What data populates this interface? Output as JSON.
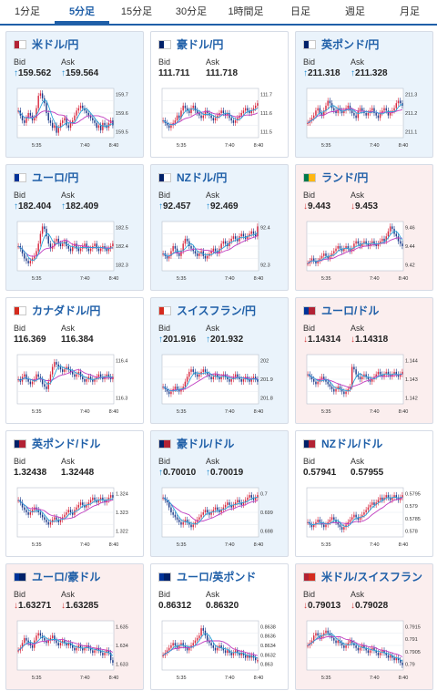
{
  "tabs": [
    "1分足",
    "5分足",
    "15分足",
    "30分足",
    "1時間足",
    "日足",
    "週足",
    "月足"
  ],
  "active_tab": 1,
  "labels": {
    "bid": "Bid",
    "ask": "Ask"
  },
  "x_ticks": [
    "5:35",
    "7:40",
    "8:40"
  ],
  "cards": [
    {
      "pair": "米ドル/円",
      "flag": "usd-jpy-flag",
      "trend": "up",
      "bid": "159.562",
      "ask": "159.564",
      "y_ticks": [
        "159.7",
        "159.6",
        "159.5"
      ],
      "series": [
        0.55,
        0.45,
        0.35,
        0.3,
        0.4,
        0.5,
        0.45,
        0.35,
        0.4,
        0.6,
        0.85,
        0.9,
        0.8,
        0.7,
        0.5,
        0.35,
        0.3,
        0.2,
        0.25,
        0.1,
        0.2,
        0.3,
        0.35,
        0.4,
        0.25,
        0.2,
        0.3,
        0.35,
        0.45,
        0.55,
        0.6,
        0.65,
        0.6,
        0.55,
        0.5,
        0.45,
        0.4,
        0.35,
        0.3,
        0.2,
        0.25,
        0.15,
        0.3,
        0.25,
        0.2,
        0.3,
        0.35,
        0.25
      ]
    },
    {
      "pair": "豪ドル/円",
      "flag": "aud-jpy-flag",
      "trend": "neutral",
      "bid": "111.711",
      "ask": "111.718",
      "y_ticks": [
        "111.7",
        "111.6",
        "111.5"
      ],
      "series": [
        0.35,
        0.3,
        0.25,
        0.2,
        0.25,
        0.3,
        0.35,
        0.45,
        0.4,
        0.55,
        0.65,
        0.6,
        0.55,
        0.5,
        0.6,
        0.65,
        0.55,
        0.5,
        0.45,
        0.4,
        0.45,
        0.55,
        0.5,
        0.45,
        0.4,
        0.35,
        0.4,
        0.45,
        0.5,
        0.55,
        0.5,
        0.45,
        0.5,
        0.4,
        0.35,
        0.3,
        0.35,
        0.4,
        0.45,
        0.5,
        0.55,
        0.6,
        0.55,
        0.5,
        0.55,
        0.6,
        0.65,
        0.7
      ]
    },
    {
      "pair": "英ポンド/円",
      "flag": "gbp-jpy-flag",
      "trend": "up",
      "bid": "211.318",
      "ask": "211.328",
      "y_ticks": [
        "211.3",
        "211.2",
        "211.1"
      ],
      "series": [
        0.3,
        0.35,
        0.4,
        0.45,
        0.55,
        0.6,
        0.5,
        0.45,
        0.55,
        0.65,
        0.75,
        0.7,
        0.6,
        0.55,
        0.5,
        0.6,
        0.55,
        0.5,
        0.55,
        0.6,
        0.65,
        0.55,
        0.5,
        0.45,
        0.4,
        0.55,
        0.6,
        0.55,
        0.5,
        0.45,
        0.5,
        0.55,
        0.6,
        0.5,
        0.45,
        0.4,
        0.5,
        0.55,
        0.6,
        0.55,
        0.45,
        0.5,
        0.55,
        0.6,
        0.7,
        0.75,
        0.7,
        0.65
      ]
    },
    {
      "pair": "ユーロ/円",
      "flag": "eur-jpy-flag",
      "trend": "up",
      "bid": "182.404",
      "ask": "182.409",
      "y_ticks": [
        "182.5",
        "182.4",
        "182.3"
      ],
      "series": [
        0.5,
        0.45,
        0.35,
        0.25,
        0.2,
        0.15,
        0.2,
        0.25,
        0.3,
        0.4,
        0.55,
        0.75,
        0.9,
        0.85,
        0.7,
        0.55,
        0.45,
        0.5,
        0.6,
        0.65,
        0.55,
        0.5,
        0.55,
        0.6,
        0.5,
        0.45,
        0.4,
        0.5,
        0.55,
        0.45,
        0.4,
        0.45,
        0.5,
        0.55,
        0.45,
        0.4,
        0.45,
        0.5,
        0.55,
        0.45,
        0.4,
        0.45,
        0.5,
        0.45,
        0.4,
        0.45,
        0.5,
        0.55
      ]
    },
    {
      "pair": "NZドル/円",
      "flag": "nzd-jpy-flag",
      "trend": "up",
      "bid": "92.457",
      "ask": "92.469",
      "y_ticks": [
        "92.4",
        "92.3"
      ],
      "series": [
        0.35,
        0.3,
        0.25,
        0.3,
        0.4,
        0.5,
        0.45,
        0.35,
        0.3,
        0.4,
        0.55,
        0.65,
        0.6,
        0.5,
        0.45,
        0.4,
        0.35,
        0.3,
        0.35,
        0.4,
        0.3,
        0.25,
        0.3,
        0.35,
        0.4,
        0.45,
        0.4,
        0.35,
        0.45,
        0.55,
        0.6,
        0.55,
        0.5,
        0.6,
        0.65,
        0.7,
        0.65,
        0.6,
        0.7,
        0.75,
        0.7,
        0.65,
        0.7,
        0.75,
        0.8,
        0.75,
        0.7,
        0.9
      ]
    },
    {
      "pair": "ランド/円",
      "flag": "zar-jpy-flag",
      "trend": "down",
      "bid": "9.443",
      "ask": "9.453",
      "y_ticks": [
        "9.46",
        "9.44",
        "9.42"
      ],
      "series": [
        0.15,
        0.2,
        0.25,
        0.2,
        0.15,
        0.2,
        0.25,
        0.3,
        0.35,
        0.3,
        0.25,
        0.3,
        0.35,
        0.4,
        0.45,
        0.5,
        0.45,
        0.4,
        0.45,
        0.5,
        0.45,
        0.4,
        0.45,
        0.55,
        0.6,
        0.55,
        0.5,
        0.55,
        0.6,
        0.55,
        0.5,
        0.55,
        0.6,
        0.55,
        0.5,
        0.55,
        0.6,
        0.65,
        0.6,
        0.7,
        0.8,
        0.9,
        0.85,
        0.75,
        0.7,
        0.6,
        0.55,
        0.5
      ]
    },
    {
      "pair": "カナダドル/円",
      "flag": "cad-jpy-flag",
      "trend": "neutral",
      "bid": "116.369",
      "ask": "116.384",
      "y_ticks": [
        "116.4",
        "116.3"
      ],
      "series": [
        0.5,
        0.45,
        0.55,
        0.6,
        0.5,
        0.45,
        0.4,
        0.45,
        0.5,
        0.6,
        0.55,
        0.5,
        0.4,
        0.35,
        0.3,
        0.45,
        0.6,
        0.75,
        0.85,
        0.8,
        0.75,
        0.7,
        0.65,
        0.7,
        0.75,
        0.7,
        0.65,
        0.6,
        0.55,
        0.6,
        0.65,
        0.55,
        0.5,
        0.45,
        0.5,
        0.55,
        0.5,
        0.45,
        0.5,
        0.55,
        0.6,
        0.55,
        0.5,
        0.55,
        0.6,
        0.55,
        0.5,
        0.55
      ]
    },
    {
      "pair": "スイスフラン/円",
      "flag": "chf-jpy-flag",
      "trend": "up",
      "bid": "201.916",
      "ask": "201.932",
      "y_ticks": [
        "202",
        "201.9",
        "201.8"
      ],
      "series": [
        0.35,
        0.3,
        0.25,
        0.2,
        0.25,
        0.3,
        0.35,
        0.3,
        0.25,
        0.3,
        0.35,
        0.45,
        0.55,
        0.65,
        0.7,
        0.65,
        0.6,
        0.55,
        0.6,
        0.65,
        0.7,
        0.65,
        0.6,
        0.55,
        0.5,
        0.55,
        0.6,
        0.55,
        0.5,
        0.55,
        0.6,
        0.55,
        0.5,
        0.45,
        0.5,
        0.55,
        0.6,
        0.55,
        0.5,
        0.45,
        0.5,
        0.55,
        0.5,
        0.45,
        0.5,
        0.55,
        0.5,
        0.45
      ]
    },
    {
      "pair": "ユーロ/ドル",
      "flag": "eur-usd-flag",
      "trend": "down",
      "bid": "1.14314",
      "ask": "1.14318",
      "y_ticks": [
        "1.144",
        "1.143",
        "1.142"
      ],
      "series": [
        0.6,
        0.55,
        0.5,
        0.45,
        0.4,
        0.45,
        0.5,
        0.55,
        0.5,
        0.45,
        0.4,
        0.35,
        0.3,
        0.25,
        0.3,
        0.35,
        0.3,
        0.25,
        0.2,
        0.25,
        0.3,
        0.35,
        0.75,
        0.7,
        0.6,
        0.55,
        0.5,
        0.55,
        0.6,
        0.55,
        0.5,
        0.45,
        0.5,
        0.55,
        0.6,
        0.65,
        0.6,
        0.55,
        0.6,
        0.65,
        0.6,
        0.55,
        0.6,
        0.65,
        0.6,
        0.55,
        0.6,
        0.65
      ]
    },
    {
      "pair": "英ポンド/ドル",
      "flag": "gbp-usd-flag",
      "trend": "neutral",
      "bid": "1.32438",
      "ask": "1.32448",
      "y_ticks": [
        "1.324",
        "1.323",
        "1.322"
      ],
      "series": [
        0.75,
        0.7,
        0.6,
        0.55,
        0.5,
        0.45,
        0.5,
        0.55,
        0.6,
        0.55,
        0.5,
        0.45,
        0.4,
        0.35,
        0.3,
        0.25,
        0.3,
        0.35,
        0.4,
        0.35,
        0.3,
        0.35,
        0.4,
        0.45,
        0.5,
        0.55,
        0.5,
        0.45,
        0.55,
        0.6,
        0.65,
        0.7,
        0.65,
        0.6,
        0.65,
        0.7,
        0.75,
        0.8,
        0.75,
        0.7,
        0.75,
        0.8,
        0.75,
        0.7,
        0.75,
        0.8,
        0.85,
        0.8
      ]
    },
    {
      "pair": "豪ドル/ドル",
      "flag": "aud-usd-flag",
      "trend": "up",
      "bid": "0.70010",
      "ask": "0.70019",
      "y_ticks": [
        "0.7",
        "0.699",
        "0.698"
      ],
      "series": [
        0.8,
        0.75,
        0.7,
        0.6,
        0.5,
        0.45,
        0.4,
        0.35,
        0.3,
        0.25,
        0.3,
        0.35,
        0.3,
        0.25,
        0.2,
        0.25,
        0.3,
        0.35,
        0.4,
        0.45,
        0.5,
        0.55,
        0.5,
        0.45,
        0.5,
        0.55,
        0.6,
        0.55,
        0.5,
        0.55,
        0.6,
        0.65,
        0.7,
        0.65,
        0.6,
        0.65,
        0.7,
        0.75,
        0.7,
        0.65,
        0.7,
        0.75,
        0.8,
        0.85,
        0.8,
        0.75,
        0.8,
        0.85
      ]
    },
    {
      "pair": "NZドル/ドル",
      "flag": "nzd-usd-flag",
      "trend": "neutral",
      "bid": "0.57941",
      "ask": "0.57955",
      "y_ticks": [
        "0.5795",
        "0.579",
        "0.5785",
        "0.578"
      ],
      "series": [
        0.3,
        0.25,
        0.2,
        0.25,
        0.3,
        0.35,
        0.3,
        0.25,
        0.2,
        0.25,
        0.3,
        0.35,
        0.4,
        0.35,
        0.3,
        0.25,
        0.2,
        0.15,
        0.2,
        0.25,
        0.3,
        0.35,
        0.4,
        0.45,
        0.4,
        0.35,
        0.4,
        0.45,
        0.5,
        0.55,
        0.6,
        0.65,
        0.7,
        0.65,
        0.7,
        0.75,
        0.8,
        0.75,
        0.8,
        0.85,
        0.8,
        0.75,
        0.8,
        0.85,
        0.8,
        0.75,
        0.8,
        0.85
      ]
    },
    {
      "pair": "ユーロ/豪ドル",
      "flag": "eur-aud-flag",
      "trend": "down",
      "bid": "1.63271",
      "ask": "1.63285",
      "y_ticks": [
        "1.635",
        "1.634",
        "1.633"
      ],
      "series": [
        0.4,
        0.45,
        0.55,
        0.65,
        0.6,
        0.55,
        0.5,
        0.45,
        0.6,
        0.7,
        0.75,
        0.7,
        0.65,
        0.6,
        0.55,
        0.6,
        0.65,
        0.7,
        0.6,
        0.55,
        0.5,
        0.55,
        0.6,
        0.55,
        0.5,
        0.55,
        0.5,
        0.45,
        0.4,
        0.45,
        0.5,
        0.45,
        0.4,
        0.45,
        0.5,
        0.45,
        0.4,
        0.35,
        0.4,
        0.45,
        0.4,
        0.35,
        0.3,
        0.35,
        0.4,
        0.35,
        0.2,
        0.15
      ]
    },
    {
      "pair": "ユーロ/英ポンド",
      "flag": "eur-gbp-flag",
      "trend": "neutral",
      "bid": "0.86312",
      "ask": "0.86320",
      "y_ticks": [
        "0.8638",
        "0.8636",
        "0.8634",
        "0.8632",
        "0.863"
      ],
      "series": [
        0.3,
        0.35,
        0.4,
        0.45,
        0.5,
        0.55,
        0.5,
        0.45,
        0.5,
        0.55,
        0.5,
        0.45,
        0.4,
        0.45,
        0.5,
        0.55,
        0.6,
        0.65,
        0.7,
        0.85,
        0.8,
        0.7,
        0.6,
        0.55,
        0.5,
        0.45,
        0.4,
        0.45,
        0.5,
        0.45,
        0.4,
        0.35,
        0.4,
        0.35,
        0.3,
        0.35,
        0.4,
        0.35,
        0.3,
        0.35,
        0.3,
        0.25,
        0.3,
        0.25,
        0.3,
        0.25,
        0.2,
        0.2
      ]
    },
    {
      "pair": "米ドル/スイスフラン",
      "flag": "usd-chf-flag",
      "trend": "down",
      "bid": "0.79013",
      "ask": "0.79028",
      "y_ticks": [
        "0.7915",
        "0.791",
        "0.7905",
        "0.79"
      ],
      "series": [
        0.5,
        0.55,
        0.6,
        0.7,
        0.75,
        0.7,
        0.65,
        0.7,
        0.75,
        0.8,
        0.75,
        0.7,
        0.65,
        0.6,
        0.55,
        0.6,
        0.55,
        0.5,
        0.45,
        0.5,
        0.55,
        0.6,
        0.55,
        0.5,
        0.45,
        0.4,
        0.45,
        0.5,
        0.45,
        0.4,
        0.35,
        0.4,
        0.45,
        0.4,
        0.35,
        0.3,
        0.35,
        0.4,
        0.35,
        0.3,
        0.25,
        0.3,
        0.25,
        0.2,
        0.25,
        0.2,
        0.15,
        0.1
      ]
    }
  ],
  "colors": {
    "up_candle": "#d7263d",
    "down_candle": "#1b3a8a",
    "ma_slow": "#c03cc0",
    "ma_fast": "#2aa3d8",
    "brand": "#1f5fa8"
  }
}
